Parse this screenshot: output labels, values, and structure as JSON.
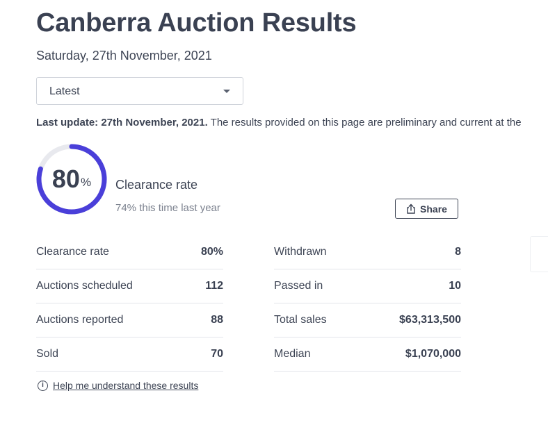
{
  "page": {
    "title": "Canberra Auction Results",
    "date": "Saturday, 27th November, 2021"
  },
  "filter": {
    "selected": "Latest"
  },
  "update_notice": {
    "bold": "Last update: 27th November, 2021.",
    "text": "The results provided on this page are preliminary and current at the"
  },
  "clearance": {
    "rate_number": "80",
    "rate_symbol": "%",
    "rate_fraction": 0.8,
    "label": "Clearance rate",
    "comparison": "74% this time last year",
    "ring_color": "#4a3fd9",
    "track_color": "#e8e9ee"
  },
  "share": {
    "label": "Share",
    "icon": "share-icon"
  },
  "stats_left": [
    {
      "label": "Clearance rate",
      "value": "80%"
    },
    {
      "label": "Auctions scheduled",
      "value": "112"
    },
    {
      "label": "Auctions reported",
      "value": "88"
    },
    {
      "label": "Sold",
      "value": "70"
    }
  ],
  "stats_right": [
    {
      "label": "Withdrawn",
      "value": "8"
    },
    {
      "label": "Passed in",
      "value": "10"
    },
    {
      "label": "Total sales",
      "value": "$63,313,500"
    },
    {
      "label": "Median",
      "value": "$1,070,000"
    }
  ],
  "help": {
    "icon": "info-icon",
    "link_text": "Help me understand these results"
  }
}
